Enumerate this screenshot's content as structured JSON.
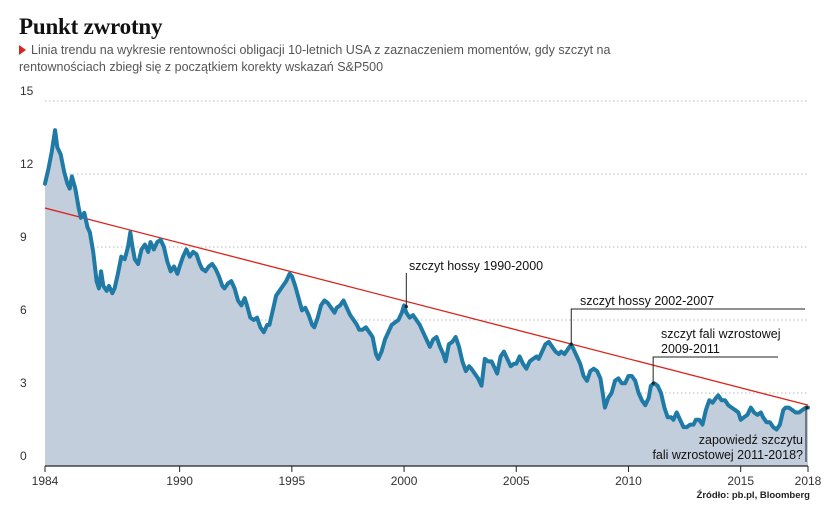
{
  "title": "Punkt zwrotny",
  "subtitle": "Linia trendu na wykresie rentowności obligacji 10-letnich USA z zaznaczeniem momentów, gdy szczyt na rentownościach zbiegł się z początkiem korekty wskazań S&P500",
  "source": "Źródło: pb.pl, Bloomberg",
  "colors": {
    "line": "#1f7aa6",
    "area": "#c3cedd",
    "trend": "#d9251c",
    "grid": "#bbbbbb",
    "accent": "#d9251c"
  },
  "chart_data": {
    "type": "area",
    "title": "Punkt zwrotny",
    "xlabel": "",
    "ylabel": "",
    "xlim": [
      1984,
      2018
    ],
    "ylim": [
      0,
      15
    ],
    "grid": true,
    "x_ticks": [
      1984,
      1990,
      1995,
      2000,
      2005,
      2010,
      2015,
      2018
    ],
    "y_ticks": [
      0,
      3,
      6,
      9,
      12,
      15
    ],
    "series": [
      {
        "points": [
          [
            1984.0,
            11.6
          ],
          [
            1984.15,
            12.2
          ],
          [
            1984.3,
            12.9
          ],
          [
            1984.45,
            13.8
          ],
          [
            1984.55,
            13.1
          ],
          [
            1984.7,
            12.8
          ],
          [
            1984.85,
            12.1
          ],
          [
            1985.0,
            11.6
          ],
          [
            1985.1,
            11.4
          ],
          [
            1985.2,
            11.9
          ],
          [
            1985.35,
            11.4
          ],
          [
            1985.5,
            10.6
          ],
          [
            1985.6,
            10.2
          ],
          [
            1985.75,
            10.4
          ],
          [
            1985.9,
            9.8
          ],
          [
            1986.0,
            9.6
          ],
          [
            1986.15,
            8.8
          ],
          [
            1986.3,
            7.6
          ],
          [
            1986.4,
            7.3
          ],
          [
            1986.5,
            8.0
          ],
          [
            1986.6,
            7.4
          ],
          [
            1986.75,
            7.2
          ],
          [
            1986.85,
            7.4
          ],
          [
            1987.0,
            7.1
          ],
          [
            1987.1,
            7.3
          ],
          [
            1987.25,
            7.9
          ],
          [
            1987.4,
            8.6
          ],
          [
            1987.55,
            8.5
          ],
          [
            1987.7,
            9.0
          ],
          [
            1987.8,
            9.6
          ],
          [
            1987.9,
            9.0
          ],
          [
            1988.0,
            8.5
          ],
          [
            1988.15,
            8.3
          ],
          [
            1988.3,
            8.9
          ],
          [
            1988.45,
            9.1
          ],
          [
            1988.6,
            8.8
          ],
          [
            1988.7,
            9.2
          ],
          [
            1988.85,
            8.9
          ],
          [
            1989.0,
            9.2
          ],
          [
            1989.15,
            9.3
          ],
          [
            1989.3,
            9.0
          ],
          [
            1989.45,
            8.4
          ],
          [
            1989.6,
            8.0
          ],
          [
            1989.75,
            8.2
          ],
          [
            1989.9,
            7.9
          ],
          [
            1990.0,
            8.2
          ],
          [
            1990.15,
            8.6
          ],
          [
            1990.3,
            8.9
          ],
          [
            1990.45,
            8.6
          ],
          [
            1990.6,
            8.8
          ],
          [
            1990.75,
            8.7
          ],
          [
            1990.9,
            8.3
          ],
          [
            1991.0,
            8.1
          ],
          [
            1991.15,
            8.0
          ],
          [
            1991.3,
            8.2
          ],
          [
            1991.45,
            8.3
          ],
          [
            1991.6,
            8.1
          ],
          [
            1991.75,
            7.8
          ],
          [
            1991.9,
            7.4
          ],
          [
            1992.0,
            7.3
          ],
          [
            1992.15,
            7.5
          ],
          [
            1992.3,
            7.6
          ],
          [
            1992.45,
            7.3
          ],
          [
            1992.6,
            6.8
          ],
          [
            1992.75,
            6.6
          ],
          [
            1992.9,
            6.9
          ],
          [
            1993.0,
            6.6
          ],
          [
            1993.15,
            6.1
          ],
          [
            1993.3,
            6.0
          ],
          [
            1993.45,
            6.1
          ],
          [
            1993.6,
            5.7
          ],
          [
            1993.75,
            5.5
          ],
          [
            1993.9,
            5.8
          ],
          [
            1994.0,
            5.8
          ],
          [
            1994.15,
            6.4
          ],
          [
            1994.3,
            7.0
          ],
          [
            1994.45,
            7.2
          ],
          [
            1994.6,
            7.4
          ],
          [
            1994.75,
            7.6
          ],
          [
            1994.9,
            7.9
          ],
          [
            1995.0,
            7.8
          ],
          [
            1995.15,
            7.4
          ],
          [
            1995.3,
            6.9
          ],
          [
            1995.45,
            6.4
          ],
          [
            1995.6,
            6.5
          ],
          [
            1995.75,
            6.2
          ],
          [
            1995.9,
            5.8
          ],
          [
            1996.0,
            5.7
          ],
          [
            1996.15,
            6.1
          ],
          [
            1996.3,
            6.6
          ],
          [
            1996.45,
            6.8
          ],
          [
            1996.6,
            6.7
          ],
          [
            1996.75,
            6.5
          ],
          [
            1996.9,
            6.3
          ],
          [
            1997.0,
            6.5
          ],
          [
            1997.15,
            6.6
          ],
          [
            1997.3,
            6.8
          ],
          [
            1997.45,
            6.5
          ],
          [
            1997.6,
            6.2
          ],
          [
            1997.75,
            6.0
          ],
          [
            1997.9,
            5.8
          ],
          [
            1998.0,
            5.6
          ],
          [
            1998.15,
            5.6
          ],
          [
            1998.3,
            5.7
          ],
          [
            1998.45,
            5.5
          ],
          [
            1998.6,
            5.3
          ],
          [
            1998.75,
            4.6
          ],
          [
            1998.85,
            4.4
          ],
          [
            1999.0,
            4.7
          ],
          [
            1999.15,
            5.2
          ],
          [
            1999.3,
            5.5
          ],
          [
            1999.45,
            5.8
          ],
          [
            1999.6,
            5.9
          ],
          [
            1999.75,
            6.0
          ],
          [
            1999.9,
            6.3
          ],
          [
            2000.0,
            6.6
          ],
          [
            2000.1,
            6.3
          ],
          [
            2000.25,
            6.1
          ],
          [
            2000.4,
            6.2
          ],
          [
            2000.55,
            6.0
          ],
          [
            2000.7,
            5.8
          ],
          [
            2000.85,
            5.5
          ],
          [
            2001.0,
            5.2
          ],
          [
            2001.15,
            4.9
          ],
          [
            2001.3,
            5.2
          ],
          [
            2001.45,
            5.3
          ],
          [
            2001.6,
            4.9
          ],
          [
            2001.75,
            4.6
          ],
          [
            2001.85,
            4.3
          ],
          [
            2002.0,
            5.0
          ],
          [
            2002.15,
            5.1
          ],
          [
            2002.3,
            5.3
          ],
          [
            2002.45,
            4.9
          ],
          [
            2002.6,
            4.3
          ],
          [
            2002.75,
            3.9
          ],
          [
            2002.9,
            4.1
          ],
          [
            2003.0,
            4.0
          ],
          [
            2003.15,
            3.8
          ],
          [
            2003.3,
            3.6
          ],
          [
            2003.45,
            3.3
          ],
          [
            2003.6,
            4.4
          ],
          [
            2003.75,
            4.3
          ],
          [
            2003.9,
            4.3
          ],
          [
            2004.0,
            4.1
          ],
          [
            2004.15,
            3.8
          ],
          [
            2004.3,
            4.5
          ],
          [
            2004.45,
            4.7
          ],
          [
            2004.6,
            4.4
          ],
          [
            2004.75,
            4.1
          ],
          [
            2004.9,
            4.2
          ],
          [
            2005.0,
            4.2
          ],
          [
            2005.15,
            4.5
          ],
          [
            2005.3,
            4.2
          ],
          [
            2005.45,
            4.0
          ],
          [
            2005.6,
            4.3
          ],
          [
            2005.75,
            4.4
          ],
          [
            2005.9,
            4.5
          ],
          [
            2006.0,
            4.4
          ],
          [
            2006.15,
            4.7
          ],
          [
            2006.3,
            5.0
          ],
          [
            2006.45,
            5.1
          ],
          [
            2006.6,
            4.9
          ],
          [
            2006.75,
            4.7
          ],
          [
            2006.9,
            4.6
          ],
          [
            2007.0,
            4.7
          ],
          [
            2007.15,
            4.6
          ],
          [
            2007.3,
            4.8
          ],
          [
            2007.45,
            5.0
          ],
          [
            2007.55,
            4.8
          ],
          [
            2007.7,
            4.5
          ],
          [
            2007.85,
            4.2
          ],
          [
            2008.0,
            3.7
          ],
          [
            2008.15,
            3.5
          ],
          [
            2008.3,
            3.9
          ],
          [
            2008.45,
            4.0
          ],
          [
            2008.6,
            3.9
          ],
          [
            2008.75,
            3.6
          ],
          [
            2008.85,
            3.0
          ],
          [
            2008.95,
            2.4
          ],
          [
            2009.1,
            2.8
          ],
          [
            2009.25,
            3.0
          ],
          [
            2009.4,
            3.5
          ],
          [
            2009.55,
            3.6
          ],
          [
            2009.7,
            3.4
          ],
          [
            2009.85,
            3.4
          ],
          [
            2010.0,
            3.7
          ],
          [
            2010.15,
            3.7
          ],
          [
            2010.3,
            3.5
          ],
          [
            2010.45,
            3.0
          ],
          [
            2010.6,
            2.7
          ],
          [
            2010.75,
            2.5
          ],
          [
            2010.9,
            2.8
          ],
          [
            2011.0,
            3.3
          ],
          [
            2011.15,
            3.4
          ],
          [
            2011.3,
            3.3
          ],
          [
            2011.45,
            3.0
          ],
          [
            2011.6,
            2.4
          ],
          [
            2011.75,
            2.0
          ],
          [
            2011.9,
            2.0
          ],
          [
            2012.0,
            1.9
          ],
          [
            2012.15,
            2.2
          ],
          [
            2012.3,
            1.9
          ],
          [
            2012.45,
            1.6
          ],
          [
            2012.6,
            1.6
          ],
          [
            2012.75,
            1.7
          ],
          [
            2012.9,
            1.7
          ],
          [
            2013.0,
            1.9
          ],
          [
            2013.15,
            1.9
          ],
          [
            2013.3,
            1.7
          ],
          [
            2013.45,
            2.3
          ],
          [
            2013.6,
            2.7
          ],
          [
            2013.75,
            2.6
          ],
          [
            2013.9,
            2.8
          ],
          [
            2014.0,
            2.9
          ],
          [
            2014.15,
            2.7
          ],
          [
            2014.3,
            2.7
          ],
          [
            2014.45,
            2.5
          ],
          [
            2014.6,
            2.4
          ],
          [
            2014.75,
            2.3
          ],
          [
            2014.9,
            2.2
          ],
          [
            2015.0,
            1.9
          ],
          [
            2015.15,
            2.0
          ],
          [
            2015.3,
            2.1
          ],
          [
            2015.45,
            2.4
          ],
          [
            2015.6,
            2.2
          ],
          [
            2015.75,
            2.1
          ],
          [
            2015.9,
            2.2
          ],
          [
            2016.0,
            2.0
          ],
          [
            2016.15,
            1.8
          ],
          [
            2016.3,
            1.8
          ],
          [
            2016.45,
            1.6
          ],
          [
            2016.6,
            1.5
          ],
          [
            2016.75,
            1.7
          ],
          [
            2016.9,
            2.3
          ],
          [
            2017.0,
            2.4
          ],
          [
            2017.15,
            2.4
          ],
          [
            2017.3,
            2.3
          ],
          [
            2017.45,
            2.2
          ],
          [
            2017.6,
            2.2
          ],
          [
            2017.75,
            2.3
          ],
          [
            2017.9,
            2.4
          ],
          [
            2018.0,
            2.4
          ]
        ]
      }
    ],
    "trend_line": {
      "from": [
        1984.0,
        10.6
      ],
      "to": [
        2018.0,
        2.5
      ]
    },
    "annotations": [
      {
        "text": "szczyt hossy 1990-2000",
        "x": 2000.1,
        "y": 6.55
      },
      {
        "text": "szczyt hossy 2002-2007",
        "x": 2007.45,
        "y": 5.0
      },
      {
        "text": "szczyt fali wzrostowej 2009-2011",
        "x": 2011.1,
        "y": 3.4
      },
      {
        "text": "zapowiedź szczytu fali wzrostowej 2011-2018?",
        "x": 2017.95,
        "y": 2.4
      }
    ]
  }
}
